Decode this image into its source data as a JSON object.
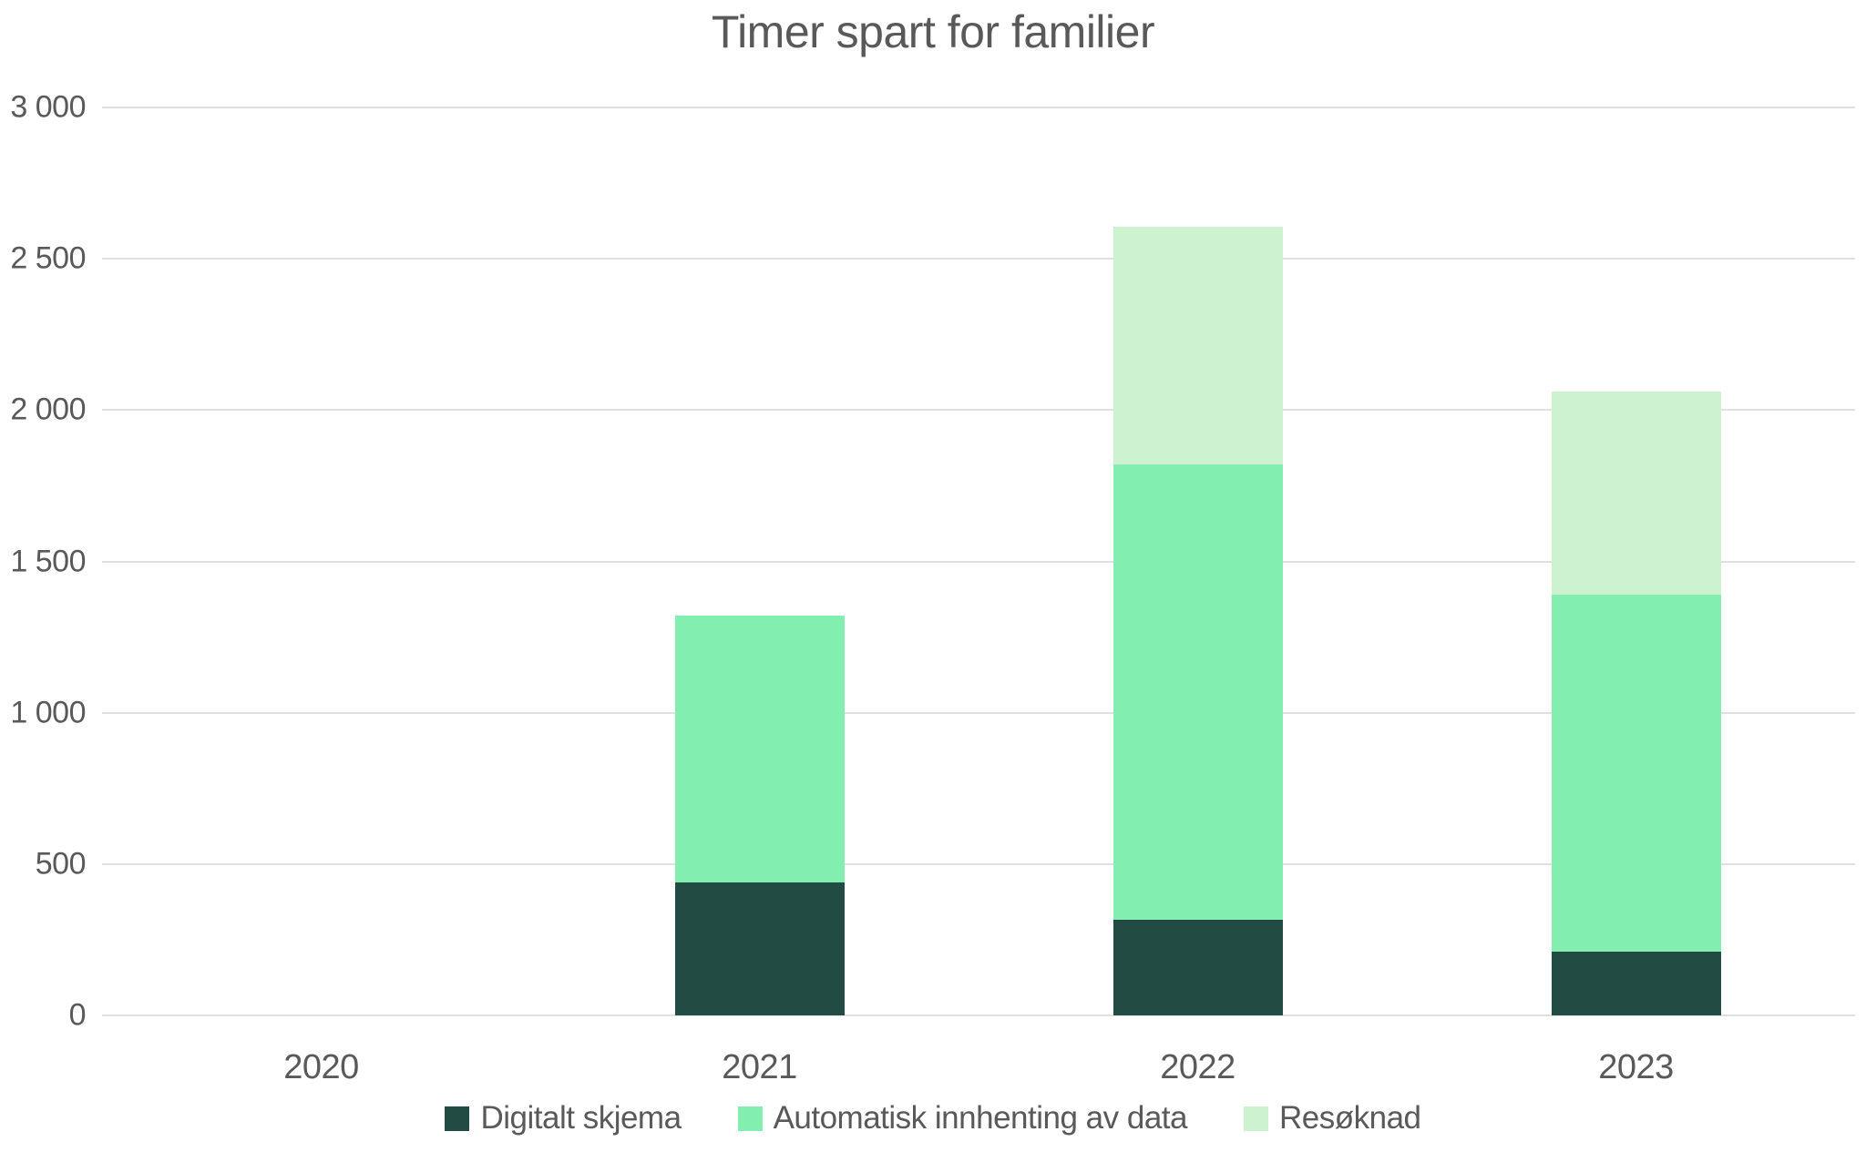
{
  "chart_data": {
    "type": "bar",
    "stacked": true,
    "title": "Timer spart for familier",
    "categories": [
      "2020",
      "2021",
      "2022",
      "2023"
    ],
    "series": [
      {
        "name": "Digitalt skjema",
        "color": "#224b44",
        "values": [
          0,
          440,
          315,
          210
        ]
      },
      {
        "name": "Automatisk innhenting av data",
        "color": "#82efb1",
        "values": [
          0,
          880,
          1505,
          1180
        ]
      },
      {
        "name": "Resøknad",
        "color": "#cdf2d0",
        "values": [
          0,
          0,
          785,
          670
        ]
      }
    ],
    "totals": [
      0,
      1320,
      2605,
      2060
    ],
    "ylim": [
      0,
      3000
    ],
    "ytick_step": 500,
    "yticks": [
      0,
      500,
      1000,
      1500,
      2000,
      2500,
      3000
    ],
    "ytick_labels": [
      "0",
      "500",
      "1 000",
      "1 500",
      "2 000",
      "2 500",
      "3 000"
    ],
    "xlabel": "",
    "ylabel": "",
    "grid": true,
    "legend_position": "bottom",
    "colors": {
      "grid": "#e0e0e0",
      "text": "#595959",
      "background": "#ffffff"
    }
  }
}
